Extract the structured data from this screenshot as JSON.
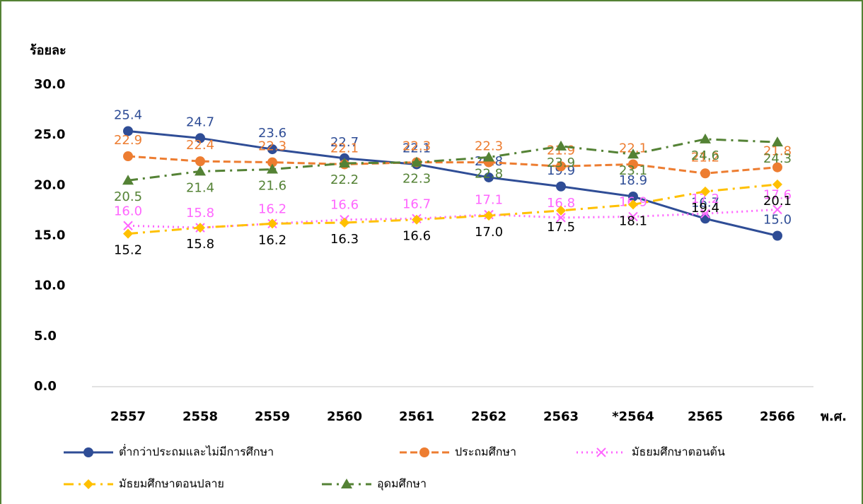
{
  "chart_data": {
    "type": "line",
    "y_label": "ร้อยละ",
    "x_label": "พ.ศ.",
    "categories": [
      "2557",
      "2558",
      "2559",
      "2560",
      "2561",
      "2562",
      "2563",
      "*2564",
      "2565",
      "2566"
    ],
    "ylim": [
      0,
      30
    ],
    "yticks": [
      {
        "value": 0,
        "label": "0.0"
      },
      {
        "value": 5,
        "label": "5.0"
      },
      {
        "value": 10,
        "label": "10.0"
      },
      {
        "value": 15,
        "label": "15.0"
      },
      {
        "value": 20,
        "label": "20.0"
      },
      {
        "value": 25,
        "label": "25.0"
      },
      {
        "value": 30,
        "label": "30.0"
      }
    ],
    "series": [
      {
        "name": "ต่ำกว่าประถมและไม่มีการศึกษา",
        "color": "#2f4d96",
        "line_style": "solid",
        "marker": "circle",
        "values": [
          25.4,
          24.7,
          23.6,
          22.7,
          22.1,
          20.8,
          19.9,
          18.9,
          16.7,
          15.0
        ],
        "value_labels": [
          "25.4",
          "24.7",
          "23.6",
          "22.7",
          "22.1",
          "20.8",
          "19.9",
          "18.9",
          "16.7",
          "15.0"
        ]
      },
      {
        "name": "ประถมศึกษา",
        "color": "#ed7d31",
        "line_style": "dashed",
        "marker": "circle",
        "values": [
          22.9,
          22.4,
          22.3,
          22.1,
          22.3,
          22.3,
          21.9,
          22.1,
          21.2,
          21.8
        ],
        "value_labels": [
          "22.9",
          "22.4",
          "22.3",
          "22.1",
          "22.3",
          "22.3",
          "21.9",
          "22.1",
          "21.2",
          "21.8"
        ]
      },
      {
        "name": "มัธยมศึกษาตอนต้น",
        "color": "#ff66ff",
        "line_style": "dotted",
        "marker": "x",
        "values": [
          16.0,
          15.8,
          16.2,
          16.6,
          16.7,
          17.1,
          16.8,
          16.9,
          17.2,
          17.6
        ],
        "value_labels": [
          "16.0",
          "15.8",
          "16.2",
          "16.6",
          "16.7",
          "17.1",
          "16.8",
          "16.9",
          "17.2",
          "17.6"
        ]
      },
      {
        "name": "มัธยมศึกษาตอนปลาย",
        "color": "#ffc000",
        "line_style": "dashdot",
        "marker": "diamond",
        "values": [
          15.2,
          15.8,
          16.2,
          16.3,
          16.6,
          17.0,
          17.5,
          18.1,
          19.4,
          20.1
        ],
        "value_labels": [
          "15.2",
          "15.8",
          "16.2",
          "16.3",
          "16.6",
          "17.0",
          "17.5",
          "18.1",
          "19.4",
          "20.1"
        ]
      },
      {
        "name": "อุดมศึกษา",
        "color": "#548235",
        "line_style": "dashdot",
        "marker": "triangle",
        "values": [
          20.5,
          21.4,
          21.6,
          22.2,
          22.3,
          22.8,
          23.9,
          23.1,
          24.6,
          24.3
        ],
        "value_labels": [
          "20.5",
          "21.4",
          "21.6",
          "22.2",
          "22.3",
          "22.8",
          "23.9",
          "23.1",
          "24.6",
          "24.3"
        ]
      }
    ]
  }
}
